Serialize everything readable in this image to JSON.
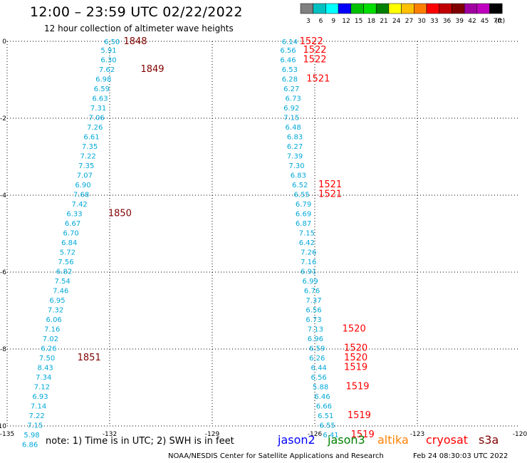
{
  "header": {
    "title": "12:00 – 23:59 UTC 02/22/2022",
    "subtitle": "12 hour collection of altimeter wave heights"
  },
  "color_scale": {
    "unit_label": "(ft)",
    "bins": [
      {
        "label": "3",
        "color": "#808080"
      },
      {
        "label": "6",
        "color": "#00c0c0"
      },
      {
        "label": "9",
        "color": "#00ffff"
      },
      {
        "label": "12",
        "color": "#0000ff"
      },
      {
        "label": "15",
        "color": "#00c000"
      },
      {
        "label": "18",
        "color": "#00e000"
      },
      {
        "label": "21",
        "color": "#008000"
      },
      {
        "label": "24",
        "color": "#ffff00"
      },
      {
        "label": "27",
        "color": "#ffc000"
      },
      {
        "label": "30",
        "color": "#ff8000"
      },
      {
        "label": "33",
        "color": "#ff0000"
      },
      {
        "label": "36",
        "color": "#c00000"
      },
      {
        "label": "39",
        "color": "#800000"
      },
      {
        "label": "42",
        "color": "#a000a0"
      },
      {
        "label": "45",
        "color": "#c000c0"
      },
      {
        "label": "70",
        "color": "#000000"
      }
    ]
  },
  "footer": {
    "note": "note:  1) Time is in UTC;  2) SWH is in feet",
    "credit": "NOAA/NESDIS Center for Satellite Applications and Research",
    "timestamp": "Feb 24 08:30:03 UTC 2022",
    "satellites": [
      {
        "name": "jason2",
        "color": "#0000ff"
      },
      {
        "name": "jason3",
        "color": "#008000"
      },
      {
        "name": "altika",
        "color": "#ff8000"
      },
      {
        "name": "cryosat",
        "color": "#ff0000"
      },
      {
        "name": "s3a",
        "color": "#800000"
      }
    ]
  },
  "chart_data": {
    "type": "scatter",
    "xlabel": "",
    "ylabel": "",
    "xlim": [
      -135,
      -120
    ],
    "ylim": [
      -10,
      0
    ],
    "x_ticks": [
      "-135",
      "-132",
      "-129",
      "-126",
      "-123",
      "-120"
    ],
    "y_ticks": [
      "0",
      "-2",
      "-4",
      "-6",
      "-8",
      "-10"
    ],
    "grid": true,
    "value_color": "#00a8d8",
    "series": [
      {
        "name": "s3a",
        "label_color": "#800000",
        "values": [
          [
            -131.7,
            0.0,
            "6.50"
          ],
          [
            -131.8,
            -0.22,
            "5.91"
          ],
          [
            -131.8,
            -0.47,
            "6.30"
          ],
          [
            -131.85,
            -0.72,
            "7.62"
          ],
          [
            -131.95,
            -0.97,
            "6.98"
          ],
          [
            -132.0,
            -1.22,
            "6.59"
          ],
          [
            -132.05,
            -1.47,
            "6.63"
          ],
          [
            -132.1,
            -1.72,
            "7.31"
          ],
          [
            -132.15,
            -1.97,
            "7.06"
          ],
          [
            -132.2,
            -2.22,
            "7.26"
          ],
          [
            -132.3,
            -2.47,
            "6.61"
          ],
          [
            -132.35,
            -2.72,
            "7.35"
          ],
          [
            -132.4,
            -2.97,
            "7.22"
          ],
          [
            -132.45,
            -3.22,
            "7.35"
          ],
          [
            -132.5,
            -3.47,
            "7.07"
          ],
          [
            -132.55,
            -3.72,
            "6.90"
          ],
          [
            -132.6,
            -3.97,
            "7.68"
          ],
          [
            -132.65,
            -4.22,
            "7.42"
          ],
          [
            -132.8,
            -4.47,
            "6.33"
          ],
          [
            -132.85,
            -4.72,
            "6.67"
          ],
          [
            -132.9,
            -4.97,
            "6.70"
          ],
          [
            -132.95,
            -5.22,
            "6.84"
          ],
          [
            -133.0,
            -5.47,
            "5.72"
          ],
          [
            -133.05,
            -5.72,
            "7.56"
          ],
          [
            -133.1,
            -5.97,
            "6.82"
          ],
          [
            -133.15,
            -6.22,
            "7.54"
          ],
          [
            -133.2,
            -6.47,
            "7.46"
          ],
          [
            -133.3,
            -6.72,
            "6.95"
          ],
          [
            -133.35,
            -6.97,
            "7.32"
          ],
          [
            -133.4,
            -7.22,
            "6.06"
          ],
          [
            -133.45,
            -7.47,
            "7.16"
          ],
          [
            -133.5,
            -7.72,
            "7.02"
          ],
          [
            -133.55,
            -7.97,
            "6.26"
          ],
          [
            -133.6,
            -8.22,
            "7.50"
          ],
          [
            -133.65,
            -8.47,
            "8.43"
          ],
          [
            -133.7,
            -8.72,
            "7.34"
          ],
          [
            -133.75,
            -8.97,
            "7.12"
          ],
          [
            -133.8,
            -9.22,
            "6.93"
          ],
          [
            -133.85,
            -9.47,
            "7.14"
          ],
          [
            -133.9,
            -9.72,
            "7.22"
          ],
          [
            -133.95,
            -9.97,
            "7.15"
          ],
          [
            -134.05,
            -10.22,
            "5.98"
          ],
          [
            -134.1,
            -10.47,
            "6.86"
          ]
        ],
        "time_labels": [
          [
            -131.25,
            0.0,
            "1848"
          ],
          [
            -130.75,
            -0.72,
            "1849"
          ],
          [
            -131.7,
            -4.47,
            "1850"
          ],
          [
            -132.6,
            -8.22,
            "1851"
          ]
        ]
      },
      {
        "name": "cryosat",
        "label_color": "#ff0000",
        "values": [
          [
            -126.5,
            0.0,
            "6.14"
          ],
          [
            -126.55,
            -0.22,
            "6.56"
          ],
          [
            -126.55,
            -0.47,
            "6.46"
          ],
          [
            -126.5,
            -0.72,
            "6.53"
          ],
          [
            -126.5,
            -0.97,
            "6.28"
          ],
          [
            -126.45,
            -1.22,
            "6.27"
          ],
          [
            -126.4,
            -1.47,
            "6.73"
          ],
          [
            -126.45,
            -1.72,
            "6.92"
          ],
          [
            -126.45,
            -1.97,
            "7.15"
          ],
          [
            -126.4,
            -2.22,
            "6.48"
          ],
          [
            -126.35,
            -2.47,
            "6.83"
          ],
          [
            -126.35,
            -2.72,
            "6.27"
          ],
          [
            -126.35,
            -2.97,
            "7.39"
          ],
          [
            -126.3,
            -3.22,
            "7.30"
          ],
          [
            -126.25,
            -3.47,
            "6.83"
          ],
          [
            -126.2,
            -3.72,
            "6.52"
          ],
          [
            -126.15,
            -3.97,
            "6.55"
          ],
          [
            -126.1,
            -4.22,
            "6.79"
          ],
          [
            -126.1,
            -4.47,
            "6.69"
          ],
          [
            -126.1,
            -4.72,
            "6.87"
          ],
          [
            -126.0,
            -4.97,
            "7.15"
          ],
          [
            -126.0,
            -5.22,
            "6.42"
          ],
          [
            -125.95,
            -5.47,
            "7.26"
          ],
          [
            -125.95,
            -5.72,
            "7.16"
          ],
          [
            -125.95,
            -5.97,
            "6.91"
          ],
          [
            -125.9,
            -6.22,
            "6.99"
          ],
          [
            -125.85,
            -6.47,
            "6.76"
          ],
          [
            -125.8,
            -6.72,
            "7.37"
          ],
          [
            -125.8,
            -6.97,
            "6.56"
          ],
          [
            -125.8,
            -7.22,
            "6.73"
          ],
          [
            -125.75,
            -7.47,
            "7.13"
          ],
          [
            -125.75,
            -7.72,
            "6.96"
          ],
          [
            -125.7,
            -7.97,
            "6.59"
          ],
          [
            -125.7,
            -8.22,
            "6.26"
          ],
          [
            -125.65,
            -8.47,
            "6.44"
          ],
          [
            -125.65,
            -8.72,
            "6.56"
          ],
          [
            -125.6,
            -8.97,
            "5.88"
          ],
          [
            -125.55,
            -9.22,
            "6.46"
          ],
          [
            -125.5,
            -9.47,
            "6.66"
          ],
          [
            -125.45,
            -9.72,
            "6.51"
          ],
          [
            -125.4,
            -9.97,
            "6.55"
          ],
          [
            -125.3,
            -10.22,
            "6.41"
          ]
        ],
        "time_labels": [
          [
            -126.1,
            0.0,
            "1522"
          ],
          [
            -126.0,
            -0.22,
            "1522"
          ],
          [
            -126.0,
            -0.47,
            "1522"
          ],
          [
            -125.9,
            -0.97,
            "1521"
          ],
          [
            -125.55,
            -3.72,
            "1521"
          ],
          [
            -125.55,
            -3.97,
            "1521"
          ],
          [
            -124.85,
            -7.47,
            "1520"
          ],
          [
            -124.8,
            -7.97,
            "1520"
          ],
          [
            -124.8,
            -8.22,
            "1520"
          ],
          [
            -124.8,
            -8.47,
            "1519"
          ],
          [
            -124.75,
            -8.97,
            "1519"
          ],
          [
            -124.7,
            -9.72,
            "1519"
          ],
          [
            -124.6,
            -10.22,
            "1519"
          ]
        ]
      }
    ]
  }
}
